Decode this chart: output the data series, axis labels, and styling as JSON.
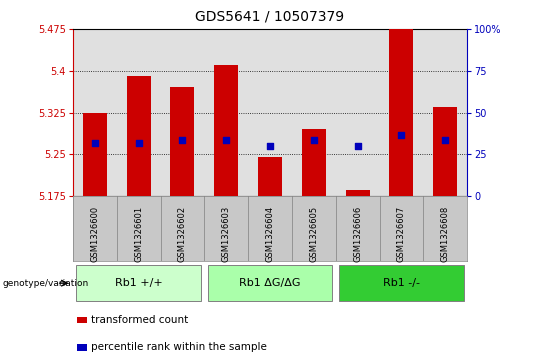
{
  "title": "GDS5641 / 10507379",
  "samples": [
    "GSM1326600",
    "GSM1326601",
    "GSM1326602",
    "GSM1326603",
    "GSM1326604",
    "GSM1326605",
    "GSM1326606",
    "GSM1326607",
    "GSM1326608"
  ],
  "bar_values": [
    5.325,
    5.39,
    5.37,
    5.41,
    5.245,
    5.295,
    5.185,
    5.475,
    5.335
  ],
  "dot_values": [
    5.27,
    5.27,
    5.275,
    5.275,
    5.265,
    5.275,
    5.265,
    5.285,
    5.275
  ],
  "y_min": 5.175,
  "y_max": 5.475,
  "y_ticks": [
    5.175,
    5.25,
    5.325,
    5.4,
    5.475
  ],
  "y_tick_labels": [
    "5.175",
    "5.25",
    "5.325",
    "5.4",
    "5.475"
  ],
  "y2_ticks_pct": [
    0,
    25,
    50,
    75,
    100
  ],
  "y2_tick_labels": [
    "0",
    "25",
    "50",
    "75",
    "100%"
  ],
  "bar_color": "#cc0000",
  "dot_color": "#0000bb",
  "groups": [
    {
      "label": "Rb1 +/+",
      "start": 0,
      "end": 3,
      "color": "#ccffcc"
    },
    {
      "label": "Rb1 ΔG/ΔG",
      "start": 3,
      "end": 6,
      "color": "#aaffaa"
    },
    {
      "label": "Rb1 -/-",
      "start": 6,
      "end": 9,
      "color": "#33cc33"
    }
  ],
  "genotype_label": "genotype/variation",
  "legend_items": [
    {
      "color": "#cc0000",
      "label": "transformed count"
    },
    {
      "color": "#0000bb",
      "label": "percentile rank within the sample"
    }
  ],
  "title_fontsize": 10,
  "tick_fontsize": 7,
  "sample_fontsize": 6,
  "group_fontsize": 8,
  "legend_fontsize": 7.5,
  "plot_bg_color": "#e0e0e0",
  "sample_bg_color": "#c8c8c8",
  "left_tick_color": "#cc0000",
  "right_tick_color": "#0000bb"
}
